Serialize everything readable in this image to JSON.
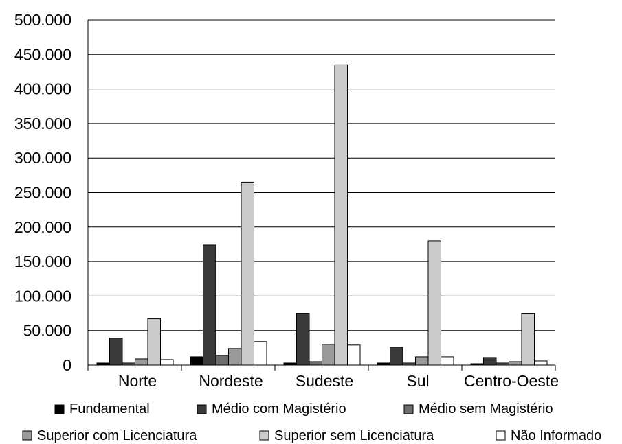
{
  "chart_data": {
    "type": "bar",
    "title": "",
    "xlabel": "",
    "ylabel": "",
    "categories": [
      "Norte",
      "Nordeste",
      "Sudeste",
      "Sul",
      "Centro-Oeste"
    ],
    "ylim": [
      0,
      500000
    ],
    "ytick_values": [
      0,
      50000,
      100000,
      150000,
      200000,
      250000,
      300000,
      350000,
      400000,
      450000,
      500000
    ],
    "ytick_labels": [
      "0",
      "50.000",
      "100.000",
      "150.000",
      "200.000",
      "250.000",
      "300.000",
      "350.000",
      "400.000",
      "450.000",
      "500.000"
    ],
    "grid": true,
    "legend_position": "bottom",
    "series": [
      {
        "name": "Fundamental",
        "color": "#000000",
        "values": [
          3000,
          12000,
          3000,
          3000,
          2000
        ]
      },
      {
        "name": "Médio com Magistério",
        "color": "#3a3a3a",
        "values": [
          39000,
          174000,
          75000,
          26000,
          11000
        ]
      },
      {
        "name": "Médio sem Magistério",
        "color": "#6e6e6e",
        "values": [
          3000,
          14000,
          5000,
          3000,
          3000
        ]
      },
      {
        "name": "Superior com Licenciatura",
        "color": "#9a9a9a",
        "values": [
          9000,
          24000,
          30000,
          12000,
          5000
        ]
      },
      {
        "name": "Superior sem Licenciatura",
        "color": "#cccccc",
        "values": [
          67000,
          265000,
          435000,
          180000,
          75000
        ]
      },
      {
        "name": "Não Informado",
        "color": "#ffffff",
        "values": [
          8000,
          34000,
          29000,
          12000,
          6000
        ]
      }
    ]
  }
}
